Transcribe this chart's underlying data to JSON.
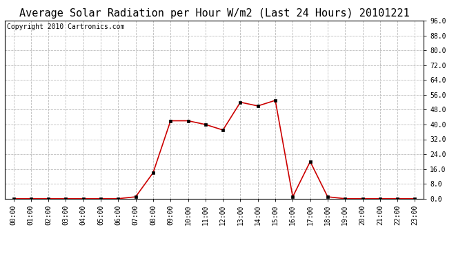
{
  "title": "Average Solar Radiation per Hour W/m2 (Last 24 Hours) 20101221",
  "copyright": "Copyright 2010 Cartronics.com",
  "hours": [
    0,
    1,
    2,
    3,
    4,
    5,
    6,
    7,
    8,
    9,
    10,
    11,
    12,
    13,
    14,
    15,
    16,
    17,
    18,
    19,
    20,
    21,
    22,
    23
  ],
  "x_labels": [
    "00:00",
    "01:00",
    "02:00",
    "03:00",
    "04:00",
    "05:00",
    "06:00",
    "07:00",
    "08:00",
    "09:00",
    "10:00",
    "11:00",
    "12:00",
    "13:00",
    "14:00",
    "15:00",
    "16:00",
    "17:00",
    "18:00",
    "19:00",
    "20:00",
    "21:00",
    "22:00",
    "23:00"
  ],
  "values": [
    0.0,
    0.0,
    0.0,
    0.0,
    0.0,
    0.0,
    0.0,
    1.0,
    14.0,
    42.0,
    42.0,
    40.0,
    37.0,
    52.0,
    50.0,
    53.0,
    1.0,
    20.0,
    1.0,
    0.0,
    0.0,
    0.0,
    0.0,
    0.0
  ],
  "line_color": "#cc0000",
  "marker_color": "#000000",
  "background_color": "#ffffff",
  "grid_color": "#bbbbbb",
  "ylim": [
    0.0,
    96.0
  ],
  "ytick_values": [
    0.0,
    8.0,
    16.0,
    24.0,
    32.0,
    40.0,
    48.0,
    56.0,
    64.0,
    72.0,
    80.0,
    88.0,
    96.0
  ],
  "ytick_labels": [
    "0.0",
    "8.0",
    "16.0",
    "24.0",
    "32.0",
    "40.0",
    "48.0",
    "56.0",
    "64.0",
    "72.0",
    "80.0",
    "88.0",
    "96.0"
  ],
  "title_fontsize": 11,
  "copyright_fontsize": 7,
  "tick_fontsize": 7,
  "marker_size": 3
}
